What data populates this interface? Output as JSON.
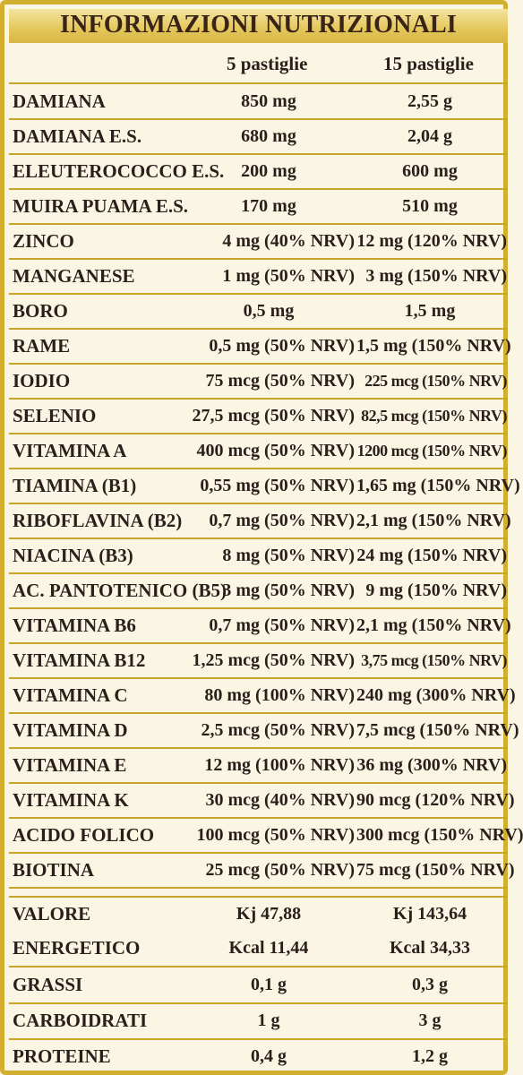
{
  "title": "INFORMAZIONI NUTRIZIONALI",
  "columns": [
    "5 pastiglie",
    "15 pastiglie"
  ],
  "rows": [
    {
      "name": "DAMIANA",
      "v5": "850 mg",
      "v15": "2,55 g"
    },
    {
      "name": "DAMIANA E.S.",
      "v5": "680 mg",
      "v15": "2,04 g"
    },
    {
      "name": "ELEUTEROCOCCO E.S.",
      "v5": "200 mg",
      "v15": "600 mg"
    },
    {
      "name": "MUIRA PUAMA E.S.",
      "v5": "170 mg",
      "v15": "510 mg"
    },
    {
      "name": "ZINCO",
      "v5": "4 mg (40% NRV)",
      "v15": "12 mg (120% NRV)"
    },
    {
      "name": "MANGANESE",
      "v5": "1 mg (50% NRV)",
      "v15": "3 mg (150% NRV)"
    },
    {
      "name": "BORO",
      "v5": "0,5 mg",
      "v15": "1,5 mg"
    },
    {
      "name": "RAME",
      "v5": "0,5 mg (50% NRV)",
      "v15": "1,5 mg (150% NRV)"
    },
    {
      "name": "IODIO",
      "v5": "75 mcg (50% NRV)",
      "v15": "225 mcg (150% NRV)"
    },
    {
      "name": "SELENIO",
      "v5": "27,5 mcg (50% NRV)",
      "v15": "82,5 mcg (150% NRV)"
    },
    {
      "name": "VITAMINA A",
      "v5": "400 mcg (50% NRV)",
      "v15": "1200 mcg (150% NRV)"
    },
    {
      "name": "TIAMINA (B1)",
      "v5": "0,55 mg (50% NRV)",
      "v15": "1,65 mg (150% NRV)"
    },
    {
      "name": "RIBOFLAVINA (B2)",
      "v5": "0,7 mg (50% NRV)",
      "v15": "2,1 mg (150% NRV)"
    },
    {
      "name": "NIACINA (B3)",
      "v5": "8 mg (50% NRV)",
      "v15": "24 mg (150% NRV)"
    },
    {
      "name": "AC. PANTOTENICO (B5)",
      "v5": "3 mg (50% NRV)",
      "v15": "9 mg (150% NRV)"
    },
    {
      "name": "VITAMINA B6",
      "v5": "0,7 mg (50% NRV)",
      "v15": "2,1 mg (150% NRV)"
    },
    {
      "name": "VITAMINA B12",
      "v5": "1,25 mcg (50% NRV)",
      "v15": "3,75 mcg (150% NRV)"
    },
    {
      "name": "VITAMINA C",
      "v5": "80 mg (100% NRV)",
      "v15": "240 mg (300% NRV)"
    },
    {
      "name": "VITAMINA D",
      "v5": "2,5 mcg (50% NRV)",
      "v15": "7,5 mcg (150% NRV)"
    },
    {
      "name": "VITAMINA E",
      "v5": "12 mg (100% NRV)",
      "v15": "36 mg (300% NRV)"
    },
    {
      "name": "VITAMINA K",
      "v5": "30 mcg (40% NRV)",
      "v15": "90 mcg (120% NRV)"
    },
    {
      "name": "ACIDO FOLICO",
      "v5": "100 mcg (50% NRV)",
      "v15": "300 mcg (150% NRV)"
    },
    {
      "name": "BIOTINA",
      "v5": "25 mcg (50% NRV)",
      "v15": "75 mcg (150% NRV)"
    }
  ],
  "energy": {
    "label1": "VALORE",
    "label2": "ENERGETICO",
    "kj5": "Kj 47,88",
    "kj15": "Kj 143,64",
    "kcal5": "Kcal 11,44",
    "kcal15": "Kcal 34,33"
  },
  "macros": [
    {
      "name": "GRASSI",
      "v5": "0,1 g",
      "v15": "0,3 g"
    },
    {
      "name": "CARBOIDRATI",
      "v5": "1 g",
      "v15": "3 g"
    },
    {
      "name": "PROTEINE",
      "v5": "0,4 g",
      "v15": "1,2 g"
    }
  ],
  "colors": {
    "gold": "#d4af2f",
    "background": "#fbf6e3",
    "text": "#2a1f1a"
  }
}
